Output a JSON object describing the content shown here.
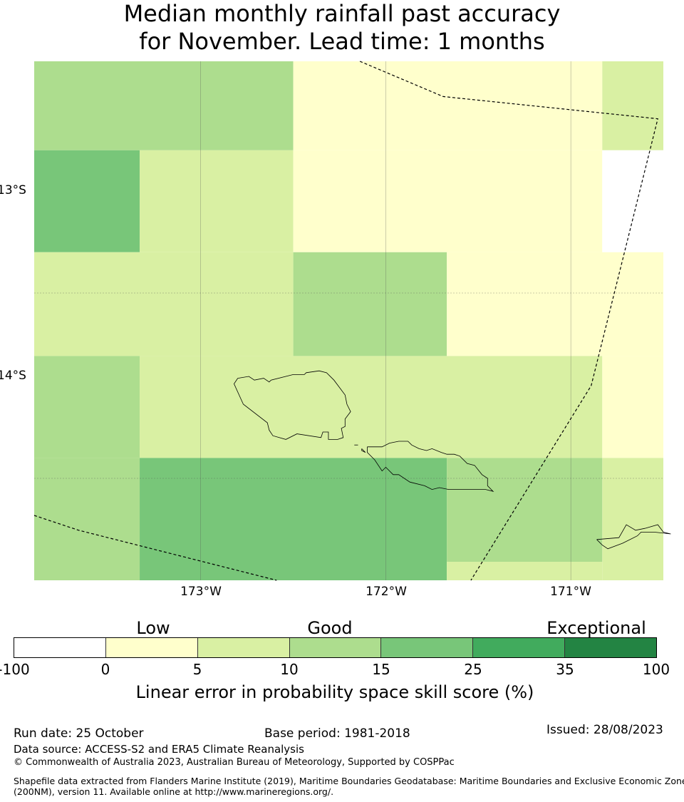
{
  "title": {
    "line1": "Median monthly rainfall past accuracy",
    "line2": "for November. Lead time: 1 months"
  },
  "map": {
    "lat_labels": [
      "13°S",
      "14°S"
    ],
    "lon_labels": [
      "173°W",
      "172°W",
      "171°W"
    ],
    "lon_range": [
      -173.9,
      -170.5
    ],
    "lat_range": [
      -14.55,
      -11.75
    ],
    "gridlines": true,
    "cells": [
      {
        "lon": [
          -173.9,
          -172.5
        ],
        "lat": [
          -12.23,
          -11.75
        ],
        "value": 12
      },
      {
        "lon": [
          -172.5,
          -170.83
        ],
        "lat": [
          -12.23,
          -11.75
        ],
        "value": 3
      },
      {
        "lon": [
          -170.83,
          -170.5
        ],
        "lat": [
          -12.23,
          -11.75
        ],
        "value": 7
      },
      {
        "lon": [
          -173.9,
          -173.33
        ],
        "lat": [
          -12.78,
          -12.23
        ],
        "value": 20
      },
      {
        "lon": [
          -173.33,
          -172.5
        ],
        "lat": [
          -12.78,
          -12.23
        ],
        "value": 7
      },
      {
        "lon": [
          -172.5,
          -170.83
        ],
        "lat": [
          -12.78,
          -12.23
        ],
        "value": 3
      },
      {
        "lon": [
          -170.83,
          -170.5
        ],
        "lat": [
          -12.78,
          -12.23
        ],
        "value": -50
      },
      {
        "lon": [
          -173.9,
          -172.5
        ],
        "lat": [
          -13.34,
          -12.78
        ],
        "value": 7
      },
      {
        "lon": [
          -172.5,
          -171.67
        ],
        "lat": [
          -13.34,
          -12.78
        ],
        "value": 12
      },
      {
        "lon": [
          -171.67,
          -170.5
        ],
        "lat": [
          -13.34,
          -12.78
        ],
        "value": 3
      },
      {
        "lon": [
          -173.9,
          -173.33
        ],
        "lat": [
          -13.89,
          -13.34
        ],
        "value": 12
      },
      {
        "lon": [
          -173.33,
          -170.83
        ],
        "lat": [
          -13.89,
          -13.34
        ],
        "value": 7
      },
      {
        "lon": [
          -170.83,
          -170.5
        ],
        "lat": [
          -13.89,
          -13.34
        ],
        "value": 3
      },
      {
        "lon": [
          -173.9,
          -173.33
        ],
        "lat": [
          -14.55,
          -13.89
        ],
        "value": 12
      },
      {
        "lon": [
          -173.33,
          -171.67
        ],
        "lat": [
          -14.55,
          -13.89
        ],
        "value": 20
      },
      {
        "lon": [
          -171.67,
          -170.83
        ],
        "lat": [
          -14.45,
          -13.89
        ],
        "value": 12
      },
      {
        "lon": [
          -171.67,
          -170.83
        ],
        "lat": [
          -14.55,
          -14.45
        ],
        "value": 7
      },
      {
        "lon": [
          -170.83,
          -170.5
        ],
        "lat": [
          -14.55,
          -13.89
        ],
        "value": 7
      }
    ],
    "eez_boundaries": [
      [
        [
          -172.14,
          -11.75
        ],
        [
          -171.69,
          -11.94
        ],
        [
          -170.53,
          -12.06
        ],
        [
          -170.89,
          -13.5
        ],
        [
          -171.54,
          -14.55
        ]
      ],
      [
        [
          -173.9,
          -14.2
        ],
        [
          -173.66,
          -14.28
        ],
        [
          -172.59,
          -14.55
        ]
      ]
    ],
    "coastlines": [
      [
        [
          -172.8,
          -13.46
        ],
        [
          -172.74,
          -13.45
        ],
        [
          -172.71,
          -13.47
        ],
        [
          -172.66,
          -13.46
        ],
        [
          -172.63,
          -13.48
        ],
        [
          -172.62,
          -13.47
        ],
        [
          -172.5,
          -13.44
        ],
        [
          -172.44,
          -13.44
        ],
        [
          -172.43,
          -13.43
        ],
        [
          -172.36,
          -13.42
        ],
        [
          -172.32,
          -13.43
        ],
        [
          -172.28,
          -13.47
        ],
        [
          -172.22,
          -13.55
        ],
        [
          -172.21,
          -13.6
        ],
        [
          -172.19,
          -13.64
        ],
        [
          -172.22,
          -13.68
        ],
        [
          -172.22,
          -13.72
        ],
        [
          -172.24,
          -13.73
        ],
        [
          -172.23,
          -13.78
        ],
        [
          -172.26,
          -13.79
        ],
        [
          -172.31,
          -13.79
        ],
        [
          -172.31,
          -13.75
        ],
        [
          -172.34,
          -13.75
        ],
        [
          -172.35,
          -13.78
        ],
        [
          -172.48,
          -13.76
        ],
        [
          -172.54,
          -13.79
        ],
        [
          -172.61,
          -13.77
        ],
        [
          -172.63,
          -13.74
        ],
        [
          -172.64,
          -13.7
        ],
        [
          -172.77,
          -13.6
        ],
        [
          -172.82,
          -13.49
        ],
        [
          -172.8,
          -13.46
        ]
      ],
      [
        [
          -172.1,
          -13.83
        ],
        [
          -172.04,
          -13.83
        ],
        [
          -172.02,
          -13.83
        ],
        [
          -171.98,
          -13.81
        ],
        [
          -171.93,
          -13.8
        ],
        [
          -171.88,
          -13.8
        ],
        [
          -171.86,
          -13.82
        ],
        [
          -171.82,
          -13.84
        ],
        [
          -171.78,
          -13.85
        ],
        [
          -171.75,
          -13.84
        ],
        [
          -171.7,
          -13.86
        ],
        [
          -171.67,
          -13.87
        ],
        [
          -171.63,
          -13.87
        ],
        [
          -171.6,
          -13.88
        ],
        [
          -171.56,
          -13.92
        ],
        [
          -171.52,
          -13.93
        ],
        [
          -171.48,
          -13.98
        ],
        [
          -171.45,
          -14.0
        ],
        [
          -171.45,
          -14.04
        ],
        [
          -171.42,
          -14.07
        ],
        [
          -171.46,
          -14.06
        ],
        [
          -171.66,
          -14.06
        ],
        [
          -171.71,
          -14.05
        ],
        [
          -171.75,
          -14.06
        ],
        [
          -171.79,
          -14.04
        ],
        [
          -171.87,
          -14.02
        ],
        [
          -171.93,
          -13.98
        ],
        [
          -171.96,
          -13.98
        ],
        [
          -172.0,
          -13.94
        ],
        [
          -172.02,
          -13.96
        ],
        [
          -172.06,
          -13.9
        ],
        [
          -172.1,
          -13.86
        ],
        [
          -172.1,
          -13.83
        ]
      ],
      [
        [
          -172.17,
          -13.82
        ],
        [
          -172.15,
          -13.82
        ]
      ],
      [
        [
          -172.13,
          -13.84
        ],
        [
          -172.11,
          -13.86
        ],
        [
          -172.13,
          -13.85
        ],
        [
          -172.13,
          -13.84
        ]
      ],
      [
        [
          -170.86,
          -14.33
        ],
        [
          -170.74,
          -14.32
        ],
        [
          -170.7,
          -14.25
        ],
        [
          -170.65,
          -14.28
        ],
        [
          -170.6,
          -14.27
        ],
        [
          -170.53,
          -14.25
        ],
        [
          -170.5,
          -14.29
        ],
        [
          -170.46,
          -14.3
        ],
        [
          -170.55,
          -14.29
        ],
        [
          -170.62,
          -14.29
        ],
        [
          -170.64,
          -14.31
        ],
        [
          -170.72,
          -14.35
        ],
        [
          -170.8,
          -14.38
        ],
        [
          -170.83,
          -14.36
        ],
        [
          -170.86,
          -14.33
        ]
      ]
    ]
  },
  "legend": {
    "category_labels": [
      "Low",
      "Good",
      "Exceptional"
    ],
    "ticks": [
      "-100",
      "0",
      "5",
      "10",
      "15",
      "25",
      "35",
      "100"
    ],
    "bins": [
      {
        "min": -100,
        "max": 0,
        "color": "#ffffff"
      },
      {
        "min": 0,
        "max": 5,
        "color": "#ffffcc"
      },
      {
        "min": 5,
        "max": 10,
        "color": "#d9f0a3"
      },
      {
        "min": 10,
        "max": 15,
        "color": "#addd8e"
      },
      {
        "min": 15,
        "max": 25,
        "color": "#78c679"
      },
      {
        "min": 25,
        "max": 35,
        "color": "#41ab5d"
      },
      {
        "min": 35,
        "max": 100,
        "color": "#238443"
      }
    ],
    "title": "Linear error in probability space skill score (%)"
  },
  "footer": {
    "run_date": "Run date: 25 October",
    "base_period": "Base period: 1981-2018",
    "issued": "Issued: 28/08/2023",
    "data_source": "Data source: ACCESS-S2 and ERA5 Climate Reanalysis",
    "copyright": "© Commonwealth of Australia 2023, Australian Bureau of Meteorology, Supported by COSPPac",
    "shapefile_line1": "Shapefile data extracted from Flanders Marine Institute (2019), Maritime Boundaries Geodatabase: Maritime Boundaries and Exclusive Economic Zones",
    "shapefile_line2": "(200NM), version 11. Available online at http://www.marineregions.org/."
  }
}
